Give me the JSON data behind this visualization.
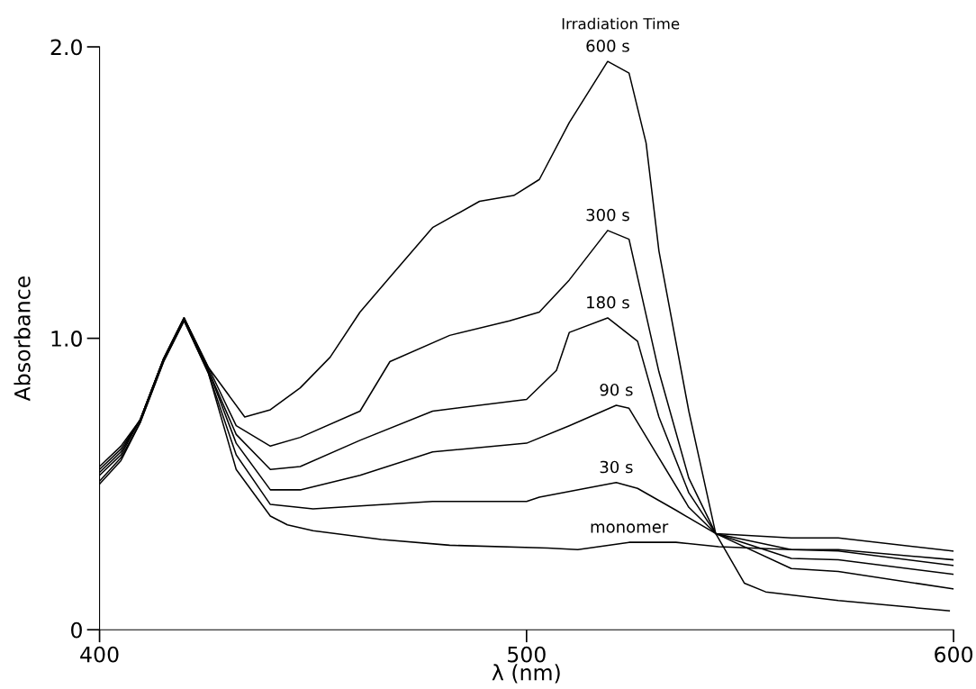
{
  "chart_data": {
    "type": "line",
    "xlabel": "λ (nm)",
    "ylabel": "Absorbance",
    "xlim": [
      400,
      600
    ],
    "xticks": [
      400,
      500,
      600
    ],
    "ylim": [
      0,
      2.0
    ],
    "yticks": [
      0,
      {
        "value": 1.0,
        "label": "1.0"
      },
      {
        "value": 2.0,
        "label": "2.0"
      }
    ],
    "grid": false,
    "legend": false,
    "marker": "none",
    "line_style": "solid",
    "series": [
      {
        "name": "monomer",
        "color": "#000000",
        "x": [
          400,
          405,
          409.5,
          415,
          419.8,
          425.5,
          432,
          440,
          444,
          450,
          466,
          482,
          505,
          512,
          524,
          535,
          545,
          562,
          573,
          600
        ],
        "values": [
          0.5,
          0.58,
          0.71,
          0.92,
          1.06,
          0.88,
          0.55,
          0.39,
          0.36,
          0.34,
          0.31,
          0.29,
          0.28,
          0.275,
          0.3,
          0.3,
          0.285,
          0.275,
          0.275,
          0.24
        ]
      },
      {
        "name": "30 s",
        "color": "#000000",
        "x": [
          400,
          405,
          409.5,
          415,
          419.8,
          425.5,
          432,
          440,
          450,
          461,
          478,
          500,
          503,
          521,
          526,
          535,
          544.3,
          562,
          573,
          600
        ],
        "values": [
          0.51,
          0.59,
          0.71,
          0.92,
          1.06,
          0.88,
          0.6,
          0.43,
          0.415,
          0.425,
          0.44,
          0.44,
          0.455,
          0.505,
          0.485,
          0.41,
          0.33,
          0.315,
          0.315,
          0.27
        ]
      },
      {
        "name": "90 s",
        "color": "#000000",
        "x": [
          400,
          405,
          409.5,
          415,
          419.8,
          425.5,
          432,
          440,
          447,
          461,
          478,
          500,
          510,
          521,
          524,
          531,
          538,
          544.3,
          562,
          573,
          600
        ],
        "values": [
          0.53,
          0.6,
          0.72,
          0.93,
          1.07,
          0.89,
          0.64,
          0.48,
          0.48,
          0.53,
          0.61,
          0.64,
          0.7,
          0.77,
          0.76,
          0.59,
          0.42,
          0.33,
          0.275,
          0.27,
          0.22
        ]
      },
      {
        "name": "180 s",
        "color": "#000000",
        "x": [
          400,
          405,
          409.5,
          415,
          419.8,
          425.5,
          432,
          440,
          447,
          461,
          478,
          500,
          507,
          510,
          519,
          526,
          531,
          538,
          544.3,
          562,
          573,
          600
        ],
        "values": [
          0.54,
          0.61,
          0.72,
          0.93,
          1.07,
          0.89,
          0.67,
          0.55,
          0.56,
          0.65,
          0.75,
          0.79,
          0.89,
          1.02,
          1.07,
          0.99,
          0.73,
          0.47,
          0.33,
          0.245,
          0.24,
          0.19
        ]
      },
      {
        "name": "300 s",
        "color": "#000000",
        "x": [
          400,
          405,
          409.5,
          415,
          419.8,
          425.5,
          432,
          440,
          447,
          461,
          468,
          482,
          496,
          503,
          510,
          519,
          524,
          531,
          538,
          544.3,
          562,
          573,
          600
        ],
        "values": [
          0.55,
          0.62,
          0.72,
          0.93,
          1.07,
          0.9,
          0.7,
          0.63,
          0.66,
          0.75,
          0.92,
          1.01,
          1.06,
          1.09,
          1.2,
          1.37,
          1.34,
          0.885,
          0.52,
          0.33,
          0.21,
          0.2,
          0.14
        ]
      },
      {
        "name": "600 s",
        "color": "#000000",
        "x": [
          400,
          405,
          409.5,
          415,
          419.8,
          425.5,
          434,
          440,
          447,
          454,
          461,
          468,
          478,
          489,
          497,
          503,
          510,
          519,
          524,
          528,
          531,
          538,
          544.3,
          551,
          556,
          573,
          599
        ],
        "values": [
          0.56,
          0.63,
          0.72,
          0.93,
          1.07,
          0.9,
          0.73,
          0.755,
          0.83,
          0.935,
          1.09,
          1.21,
          1.38,
          1.47,
          1.49,
          1.545,
          1.74,
          1.95,
          1.91,
          1.67,
          1.3,
          0.75,
          0.33,
          0.16,
          0.13,
          0.1,
          0.065
        ]
      }
    ],
    "annotations": [
      "Irradiation Time"
    ]
  }
}
